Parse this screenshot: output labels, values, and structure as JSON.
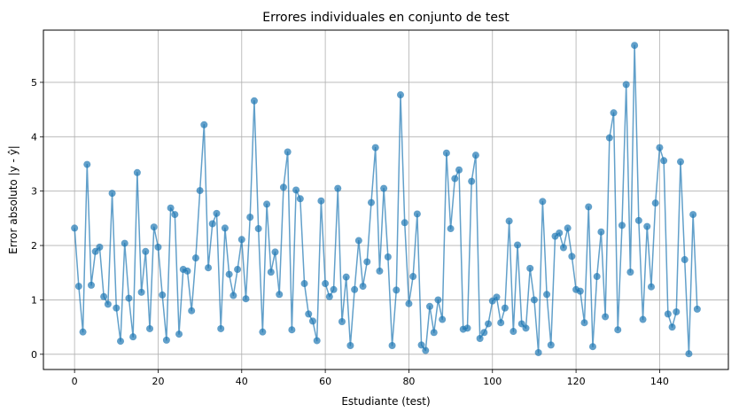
{
  "chart_data": {
    "type": "line",
    "title": "Errores individuales en conjunto de test",
    "xlabel": "Estudiante (test)",
    "ylabel": "Error absoluto |y - ŷ|",
    "xlim": [
      -7.45,
      156.45
    ],
    "ylim": [
      -0.28,
      5.96
    ],
    "xticks": [
      0,
      20,
      40,
      60,
      80,
      100,
      120,
      140
    ],
    "yticks": [
      0,
      1,
      2,
      3,
      4,
      5
    ],
    "grid": true,
    "markers": "circle",
    "color": "#1f77b4",
    "series": [
      {
        "values": [
          2.32,
          1.25,
          0.41,
          3.49,
          1.27,
          1.89,
          1.97,
          1.06,
          0.92,
          2.96,
          0.85,
          0.24,
          2.04,
          1.03,
          0.32,
          3.34,
          1.14,
          1.89,
          0.47,
          2.34,
          1.97,
          1.09,
          0.26,
          2.69,
          2.57,
          0.37,
          1.56,
          1.53,
          0.8,
          1.77,
          3.01,
          4.22,
          1.59,
          2.4,
          2.59,
          0.47,
          2.32,
          1.47,
          1.08,
          1.56,
          2.11,
          1.02,
          2.52,
          4.66,
          2.31,
          0.41,
          2.76,
          1.51,
          1.88,
          1.1,
          3.07,
          3.72,
          0.45,
          3.02,
          2.86,
          1.3,
          0.74,
          0.61,
          0.25,
          2.82,
          1.3,
          1.06,
          1.19,
          3.05,
          0.6,
          1.42,
          0.16,
          1.19,
          2.09,
          1.25,
          1.7,
          2.79,
          3.8,
          1.53,
          3.05,
          1.79,
          0.16,
          1.18,
          4.77,
          2.42,
          0.93,
          1.43,
          2.58,
          0.17,
          0.07,
          0.88,
          0.4,
          1.0,
          0.64,
          3.7,
          2.31,
          3.23,
          3.39,
          0.46,
          0.48,
          3.18,
          3.66,
          0.29,
          0.4,
          0.56,
          0.98,
          1.05,
          0.58,
          0.85,
          2.45,
          0.42,
          2.01,
          0.56,
          0.48,
          1.58,
          1.0,
          0.03,
          2.81,
          1.1,
          0.17,
          2.17,
          2.23,
          1.96,
          2.32,
          1.8,
          1.19,
          1.16,
          0.58,
          2.71,
          0.14,
          1.43,
          2.25,
          0.69,
          3.98,
          4.44,
          0.45,
          2.37,
          4.96,
          1.51,
          5.68,
          2.46,
          0.64,
          2.35,
          1.24,
          2.78,
          3.8,
          3.56,
          0.74,
          0.5,
          0.78,
          3.54,
          1.74,
          0.01,
          2.57,
          0.83
        ]
      }
    ]
  }
}
